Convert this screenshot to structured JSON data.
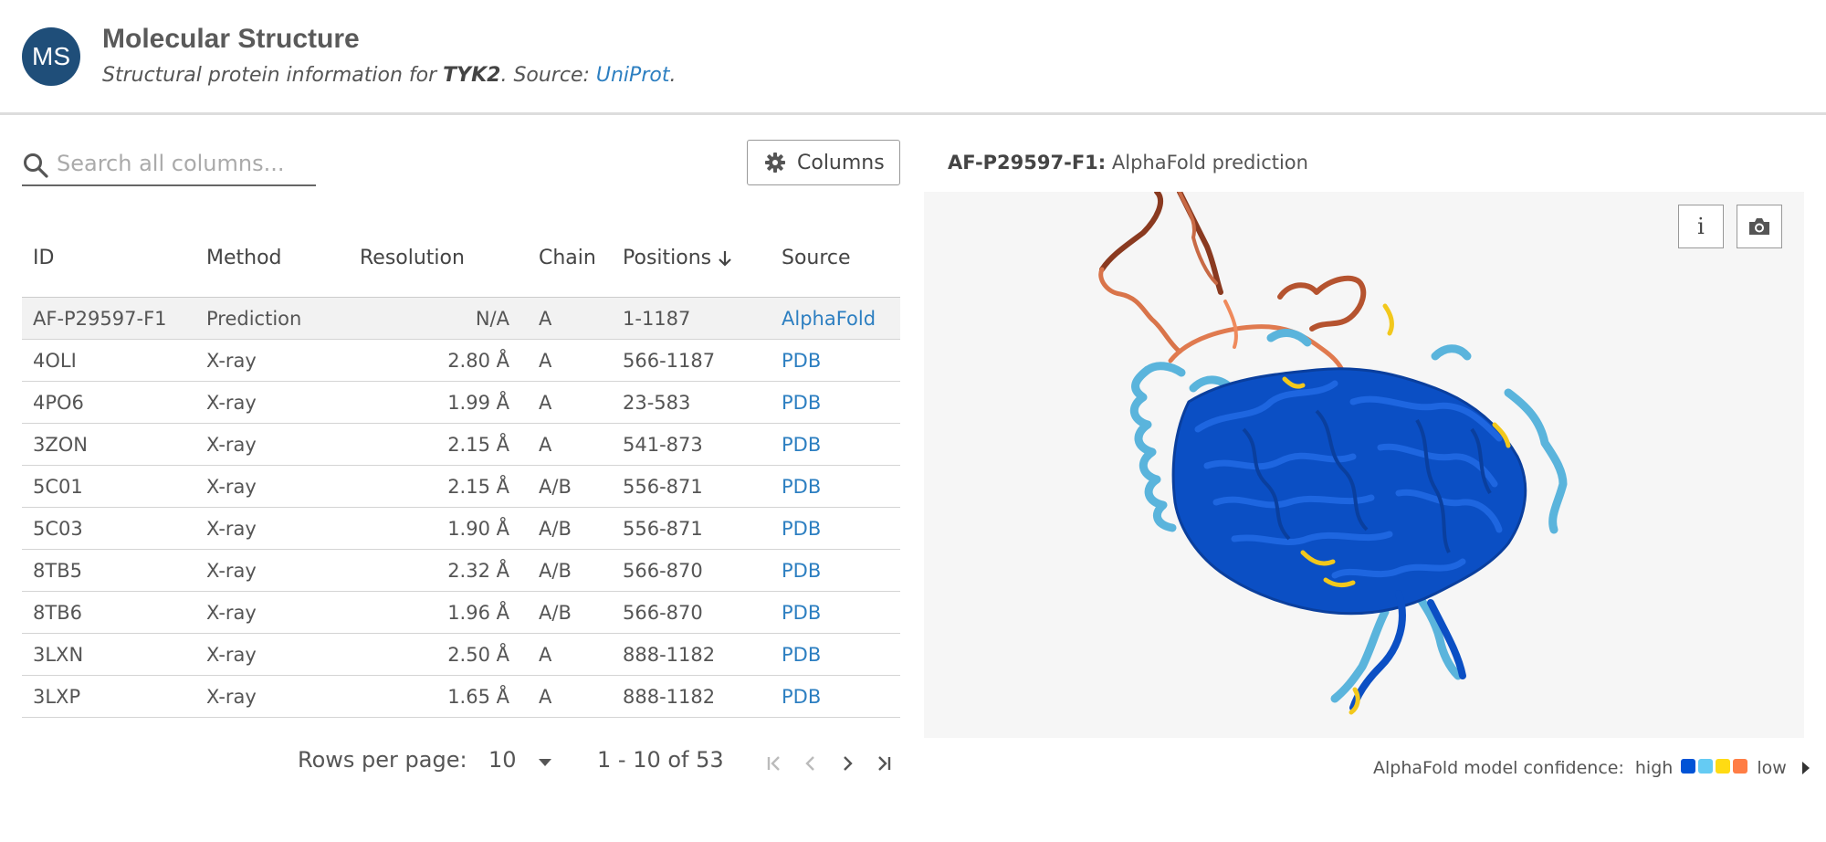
{
  "header": {
    "avatar_initials": "MS",
    "title": "Molecular Structure",
    "subtitle_prefix": "Structural protein information for ",
    "gene": "TYK2",
    "subtitle_mid": ". Source: ",
    "source_link": "UniProt",
    "subtitle_end": "."
  },
  "search": {
    "placeholder": "Search all columns...",
    "icon": "search-icon"
  },
  "toolbar": {
    "columns_label": "Columns",
    "columns_icon": "gear-icon"
  },
  "table": {
    "headers": {
      "id": "ID",
      "method": "Method",
      "resolution": "Resolution",
      "chain": "Chain",
      "positions": "Positions",
      "source": "Source"
    },
    "sort": {
      "column": "positions",
      "icon": "arrow-down-icon"
    },
    "rows": [
      {
        "id": "AF-P29597-F1",
        "method": "Prediction",
        "resolution": "N/A",
        "chain": "A",
        "positions": "1-1187",
        "source": "AlphaFold"
      },
      {
        "id": "4OLI",
        "method": "X-ray",
        "resolution": "2.80 Å",
        "chain": "A",
        "positions": "566-1187",
        "source": "PDB"
      },
      {
        "id": "4PO6",
        "method": "X-ray",
        "resolution": "1.99 Å",
        "chain": "A",
        "positions": "23-583",
        "source": "PDB"
      },
      {
        "id": "3ZON",
        "method": "X-ray",
        "resolution": "2.15 Å",
        "chain": "A",
        "positions": "541-873",
        "source": "PDB"
      },
      {
        "id": "5C01",
        "method": "X-ray",
        "resolution": "2.15 Å",
        "chain": "A/B",
        "positions": "556-871",
        "source": "PDB"
      },
      {
        "id": "5C03",
        "method": "X-ray",
        "resolution": "1.90 Å",
        "chain": "A/B",
        "positions": "556-871",
        "source": "PDB"
      },
      {
        "id": "8TB5",
        "method": "X-ray",
        "resolution": "2.32 Å",
        "chain": "A/B",
        "positions": "566-870",
        "source": "PDB"
      },
      {
        "id": "8TB6",
        "method": "X-ray",
        "resolution": "1.96 Å",
        "chain": "A/B",
        "positions": "566-870",
        "source": "PDB"
      },
      {
        "id": "3LXN",
        "method": "X-ray",
        "resolution": "2.50 Å",
        "chain": "A",
        "positions": "888-1182",
        "source": "PDB"
      },
      {
        "id": "3LXP",
        "method": "X-ray",
        "resolution": "1.65 Å",
        "chain": "A",
        "positions": "888-1182",
        "source": "PDB"
      }
    ]
  },
  "pagination": {
    "rows_per_page_label": "Rows per page:",
    "rows_per_page_value": "10",
    "range": "1 - 10 of 53",
    "icons": [
      "first-page-icon",
      "previous-page-icon",
      "next-page-icon",
      "last-page-icon"
    ]
  },
  "viewer": {
    "structure_id": "AF-P29597-F1:",
    "structure_desc": " AlphaFold prediction",
    "info_label": "i",
    "info_icon": "info-icon",
    "screenshot_icon": "camera-icon"
  },
  "confidence": {
    "label": "AlphaFold model confidence:",
    "high": "high",
    "low": "low",
    "colors": [
      "#0053d6",
      "#65cbf3",
      "#ffdb13",
      "#ff7d45"
    ],
    "expand_icon": "caret-right-icon"
  },
  "colors": {
    "accent": "#2d7fc1",
    "avatar": "#1f4e79"
  }
}
